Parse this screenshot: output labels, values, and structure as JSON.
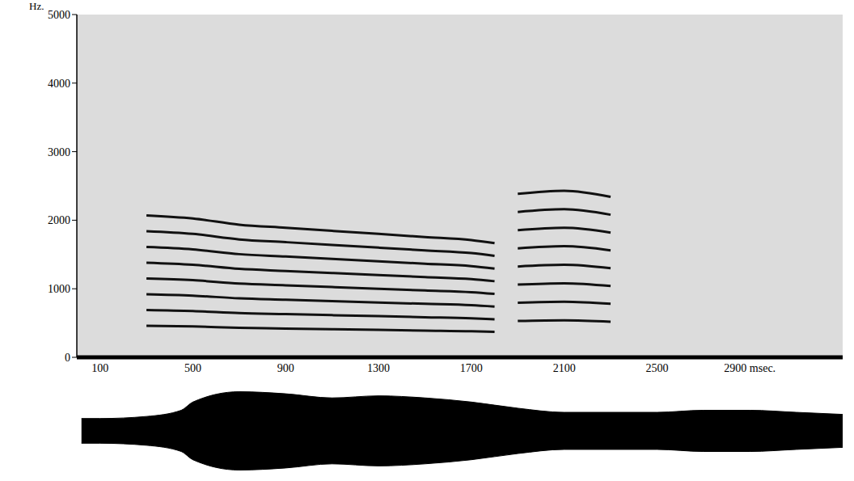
{
  "chart_data": [
    {
      "type": "line",
      "y_label": "Hz.",
      "xlim": [
        0,
        3300
      ],
      "xticks": [
        100,
        500,
        900,
        1300,
        1700,
        2100,
        2500,
        {
          "value": 2900,
          "label": "2900 msec."
        }
      ],
      "ylim": [
        0,
        5000
      ],
      "yticks": [
        0,
        1000,
        2000,
        3000,
        4000,
        5000
      ],
      "x": [
        300,
        500,
        700,
        900,
        1100,
        1300,
        1500,
        1700,
        1800,
        1850,
        1900,
        2100,
        2300
      ],
      "series": [
        {
          "color": "#111111",
          "values": [
            460,
            450,
            430,
            420,
            410,
            400,
            390,
            380,
            370,
            null,
            530,
            540,
            520
          ]
        },
        {
          "color": "#111111",
          "values": [
            690,
            675,
            645,
            630,
            615,
            600,
            585,
            570,
            555,
            null,
            795,
            810,
            780
          ]
        },
        {
          "color": "#111111",
          "values": [
            920,
            900,
            860,
            840,
            820,
            800,
            780,
            760,
            740,
            null,
            1060,
            1080,
            1040
          ]
        },
        {
          "color": "#111111",
          "values": [
            1150,
            1125,
            1075,
            1050,
            1025,
            1000,
            975,
            950,
            925,
            null,
            1325,
            1350,
            1300
          ]
        },
        {
          "color": "#111111",
          "values": [
            1380,
            1350,
            1290,
            1260,
            1230,
            1200,
            1170,
            1140,
            1110,
            null,
            1590,
            1620,
            1560
          ]
        },
        {
          "color": "#111111",
          "values": [
            1610,
            1575,
            1505,
            1470,
            1435,
            1400,
            1365,
            1330,
            1295,
            null,
            1855,
            1890,
            1820
          ]
        },
        {
          "color": "#111111",
          "values": [
            1840,
            1800,
            1720,
            1680,
            1640,
            1600,
            1560,
            1520,
            1480,
            null,
            2120,
            2160,
            2080
          ]
        },
        {
          "color": "#111111",
          "values": [
            2070,
            2025,
            1935,
            1890,
            1845,
            1800,
            1755,
            1710,
            1665,
            null,
            2385,
            2430,
            2340
          ]
        }
      ]
    },
    {
      "type": "area",
      "tick_labels": false,
      "color": "#000000",
      "xlim": [
        0,
        3300
      ],
      "ylim": [
        -1,
        1
      ],
      "x": [
        20,
        100,
        300,
        450,
        500,
        700,
        900,
        1100,
        1300,
        1500,
        1700,
        1900,
        2100,
        2300,
        2500,
        2700,
        2900,
        3100,
        3300
      ],
      "values": [
        0.3,
        0.3,
        0.35,
        0.5,
        0.7,
        0.95,
        0.9,
        0.8,
        0.85,
        0.8,
        0.7,
        0.55,
        0.45,
        0.45,
        0.45,
        0.5,
        0.5,
        0.45,
        0.4
      ]
    }
  ]
}
